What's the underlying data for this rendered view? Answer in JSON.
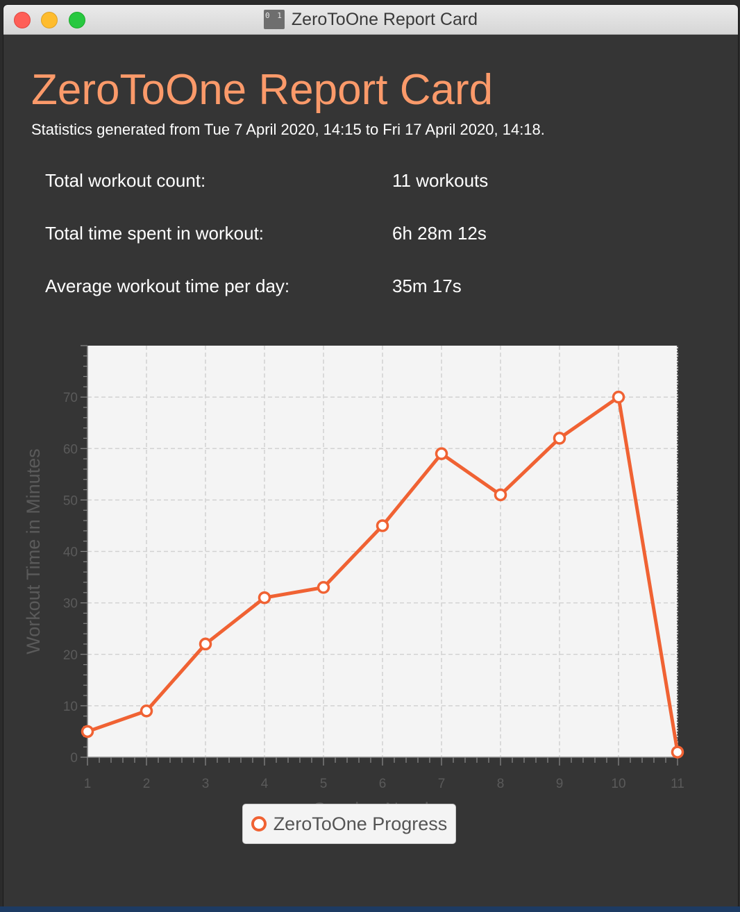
{
  "window": {
    "title": "ZeroToOne Report Card",
    "app_icon_text": "0 1"
  },
  "report": {
    "title": "ZeroToOne Report Card",
    "subtitle": "Statistics generated from Tue 7 April 2020,  14:15 to Fri 17 April 2020,  14:18.",
    "stats": [
      {
        "label": "Total workout count:",
        "value": "11 workouts"
      },
      {
        "label": "Total time spent in workout:",
        "value": "6h 28m 12s"
      },
      {
        "label": "Average workout time per day:",
        "value": "35m 17s"
      }
    ]
  },
  "colors": {
    "accent": "#fb9a6a",
    "series": "#f06233",
    "plot_bg": "#f4f4f4",
    "axis_text": "#5a5a5a"
  },
  "chart_data": {
    "type": "line",
    "x": [
      1,
      2,
      3,
      4,
      5,
      6,
      7,
      8,
      9,
      10,
      11
    ],
    "series": [
      {
        "name": "ZeroToOne Progress",
        "values": [
          5,
          9,
          22,
          31,
          33,
          45,
          59,
          51,
          62,
          70,
          1
        ]
      }
    ],
    "xlabel": "Session Number",
    "ylabel": "Workout Time in Minutes",
    "xlim": [
      1,
      11
    ],
    "ylim": [
      0,
      80
    ],
    "x_ticks": [
      "1",
      "2",
      "3",
      "4",
      "5",
      "6",
      "7",
      "8",
      "9",
      "10",
      "11"
    ],
    "y_ticks": [
      "0",
      "10",
      "20",
      "30",
      "40",
      "50",
      "60",
      "70"
    ],
    "grid": true,
    "legend_position": "bottom-center"
  }
}
